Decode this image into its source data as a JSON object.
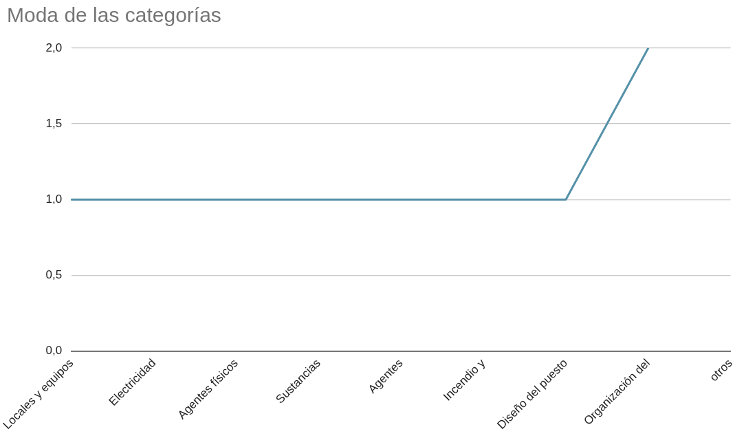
{
  "chart_data": {
    "type": "line",
    "title": "Moda de las categorías",
    "categories": [
      "Locales y equipos",
      "Electricidad",
      "Agentes físicos",
      "Sustancias",
      "Agentes",
      "Incendio y",
      "Diseño del puesto",
      "Organización del",
      "otros"
    ],
    "series": [
      {
        "color": "#5591a9",
        "values": [
          1,
          1,
          1,
          1,
          1,
          1,
          1,
          2,
          null
        ]
      }
    ],
    "ylim": [
      0,
      2
    ],
    "yticks": [
      {
        "value": 0,
        "label": "0,0"
      },
      {
        "value": 0.5,
        "label": "0,5"
      },
      {
        "value": 1,
        "label": "1,0"
      },
      {
        "value": 1.5,
        "label": "1,5"
      },
      {
        "value": 2,
        "label": "2,0"
      }
    ],
    "grid": "y",
    "legend": false,
    "marker": "none",
    "line_style": "solid"
  }
}
